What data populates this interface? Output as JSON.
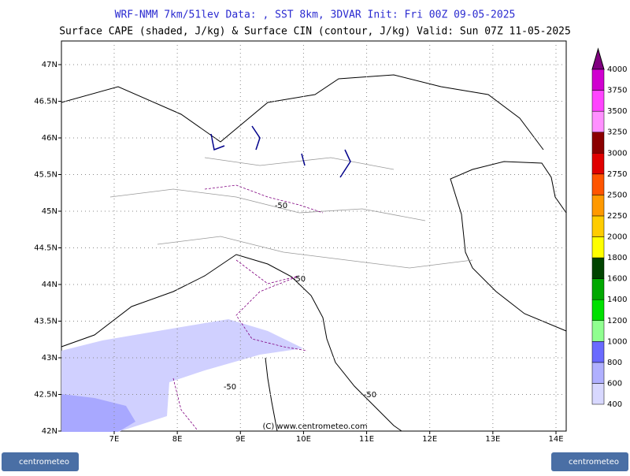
{
  "header": {
    "title": "WRF-NMM 7km/51lev  Data: , SST 8km, 3DVAR  Init: Fri 00Z 09-05-2025",
    "subtitle": "Surface CAPE (shaded, J/kg) & Surface CIN (contour, J/kg)  Valid: Sun 07Z 11-05-2025"
  },
  "map": {
    "lat_labels": [
      "47N",
      "46.5N",
      "46N",
      "45.5N",
      "45N",
      "44.5N",
      "44N",
      "43.5N",
      "43N",
      "42.5N",
      "42N"
    ],
    "lon_labels": [
      "7E",
      "8E",
      "9E",
      "10E",
      "11E",
      "12E",
      "13E",
      "14E"
    ],
    "contour_labels": [
      "-50",
      "-50",
      "-50",
      "-50"
    ],
    "copyright": "(C) www.centrometeo.com"
  },
  "colorbar": {
    "levels": [
      "400",
      "600",
      "800",
      "1000",
      "1200",
      "1400",
      "1600",
      "1800",
      "2000",
      "2250",
      "2500",
      "2750",
      "3000",
      "3250",
      "3500",
      "3750",
      "4000"
    ],
    "colors": [
      "#d8d8ff",
      "#b0b0ff",
      "#6a6aff",
      "#90ff90",
      "#00e000",
      "#00a800",
      "#004400",
      "#ffff00",
      "#ffcc00",
      "#ff9900",
      "#ff5500",
      "#e00000",
      "#8b0000",
      "#ff90ff",
      "#ff44ff",
      "#d000d0"
    ]
  },
  "logos": [
    "centrometeo",
    "centrometeo"
  ]
}
